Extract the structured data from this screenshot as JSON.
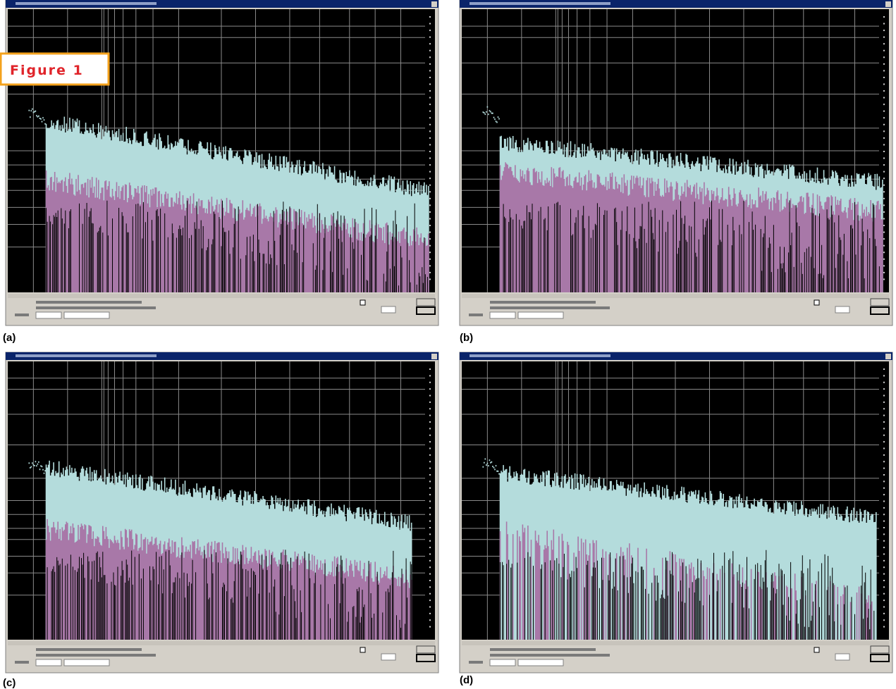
{
  "figure": {
    "label": "Figure 1",
    "panels": [
      "(a)",
      "(b)",
      "(c)",
      "(d)"
    ]
  }
}
